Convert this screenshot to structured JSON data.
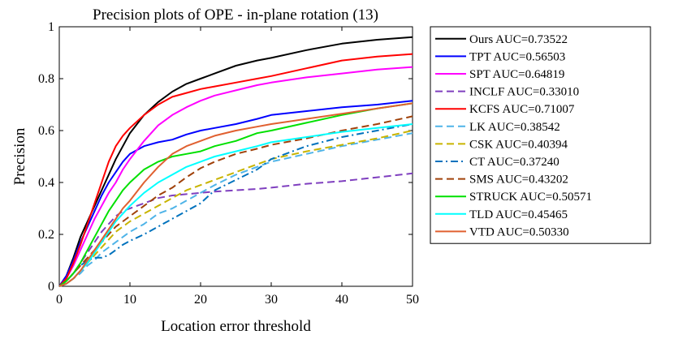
{
  "chart_data": {
    "type": "line",
    "title": "Precision plots of OPE - in-plane rotation (13)",
    "xlabel": "Location error threshold",
    "ylabel": "Precision",
    "xlim": [
      0,
      50
    ],
    "ylim": [
      0,
      1
    ],
    "xticks": [
      0,
      10,
      20,
      30,
      40,
      50
    ],
    "yticks": [
      0,
      0.2,
      0.4,
      0.6,
      0.8,
      1
    ],
    "ytick_labels": [
      "0",
      "0.2",
      "0.4",
      "0.6",
      "0.8",
      "1"
    ],
    "grid": false,
    "legend_position": "outside-right",
    "series": [
      {
        "name": "Ours AUC=0.73522",
        "color": "#000000",
        "dash": "solid",
        "x": [
          0,
          1,
          2,
          3,
          4,
          5,
          6,
          7,
          8,
          9,
          10,
          12,
          14,
          16,
          18,
          20,
          22,
          25,
          28,
          30,
          35,
          40,
          45,
          50
        ],
        "y": [
          0,
          0.04,
          0.11,
          0.19,
          0.25,
          0.31,
          0.37,
          0.43,
          0.49,
          0.54,
          0.59,
          0.66,
          0.71,
          0.75,
          0.78,
          0.8,
          0.82,
          0.85,
          0.87,
          0.88,
          0.91,
          0.935,
          0.95,
          0.96
        ]
      },
      {
        "name": "TPT AUC=0.56503",
        "color": "#0000ff",
        "dash": "solid",
        "x": [
          0,
          1,
          2,
          3,
          4,
          5,
          6,
          7,
          8,
          9,
          10,
          12,
          14,
          16,
          18,
          20,
          22,
          25,
          28,
          30,
          35,
          40,
          45,
          50
        ],
        "y": [
          0,
          0.04,
          0.1,
          0.17,
          0.23,
          0.29,
          0.35,
          0.4,
          0.44,
          0.48,
          0.51,
          0.54,
          0.555,
          0.565,
          0.585,
          0.6,
          0.61,
          0.625,
          0.645,
          0.66,
          0.675,
          0.69,
          0.7,
          0.715
        ]
      },
      {
        "name": "SPT AUC=0.64819",
        "color": "#ff00ff",
        "dash": "solid",
        "x": [
          0,
          1,
          2,
          3,
          4,
          5,
          6,
          7,
          8,
          9,
          10,
          12,
          14,
          16,
          18,
          20,
          22,
          25,
          28,
          30,
          35,
          40,
          45,
          50
        ],
        "y": [
          0,
          0.03,
          0.08,
          0.14,
          0.2,
          0.26,
          0.31,
          0.36,
          0.4,
          0.45,
          0.49,
          0.56,
          0.62,
          0.66,
          0.69,
          0.715,
          0.735,
          0.755,
          0.775,
          0.785,
          0.805,
          0.82,
          0.835,
          0.845
        ]
      },
      {
        "name": "INCLF AUC=0.33010",
        "color": "#7f3fbf",
        "dash": "dash",
        "x": [
          0,
          1,
          2,
          3,
          4,
          5,
          6,
          7,
          8,
          9,
          10,
          12,
          14,
          16,
          18,
          20,
          22,
          25,
          28,
          30,
          35,
          40,
          45,
          50
        ],
        "y": [
          0,
          0.02,
          0.05,
          0.09,
          0.13,
          0.17,
          0.21,
          0.24,
          0.27,
          0.29,
          0.3,
          0.32,
          0.34,
          0.35,
          0.355,
          0.36,
          0.365,
          0.37,
          0.375,
          0.38,
          0.395,
          0.405,
          0.42,
          0.435
        ]
      },
      {
        "name": "KCFS AUC=0.71007",
        "color": "#ff0000",
        "dash": "solid",
        "x": [
          0,
          1,
          2,
          3,
          4,
          5,
          6,
          7,
          8,
          9,
          10,
          12,
          14,
          16,
          18,
          20,
          22,
          25,
          28,
          30,
          35,
          40,
          45,
          50
        ],
        "y": [
          0,
          0.03,
          0.09,
          0.16,
          0.24,
          0.32,
          0.4,
          0.48,
          0.54,
          0.58,
          0.61,
          0.66,
          0.7,
          0.73,
          0.745,
          0.76,
          0.77,
          0.785,
          0.8,
          0.81,
          0.84,
          0.87,
          0.885,
          0.895
        ]
      },
      {
        "name": "LK AUC=0.38542",
        "color": "#4fb4e8",
        "dash": "dash",
        "x": [
          0,
          1,
          2,
          3,
          4,
          5,
          6,
          7,
          8,
          9,
          10,
          12,
          14,
          16,
          18,
          20,
          22,
          25,
          28,
          30,
          35,
          40,
          45,
          50
        ],
        "y": [
          0,
          0.01,
          0.03,
          0.05,
          0.08,
          0.1,
          0.13,
          0.15,
          0.17,
          0.19,
          0.21,
          0.24,
          0.28,
          0.3,
          0.33,
          0.36,
          0.39,
          0.43,
          0.46,
          0.48,
          0.51,
          0.54,
          0.565,
          0.59
        ]
      },
      {
        "name": "CSK AUC=0.40394",
        "color": "#c8b400",
        "dash": "dash",
        "x": [
          0,
          1,
          2,
          3,
          4,
          5,
          6,
          7,
          8,
          9,
          10,
          12,
          14,
          16,
          18,
          20,
          22,
          25,
          28,
          30,
          35,
          40,
          45,
          50
        ],
        "y": [
          0,
          0.01,
          0.03,
          0.06,
          0.09,
          0.12,
          0.15,
          0.18,
          0.21,
          0.23,
          0.25,
          0.28,
          0.31,
          0.34,
          0.37,
          0.39,
          0.41,
          0.44,
          0.47,
          0.49,
          0.52,
          0.545,
          0.57,
          0.6
        ]
      },
      {
        "name": "CT AUC=0.37240",
        "color": "#0072bd",
        "dash": "dashdot",
        "x": [
          0,
          1,
          2,
          3,
          4,
          5,
          6,
          7,
          8,
          9,
          10,
          12,
          14,
          16,
          18,
          20,
          22,
          25,
          28,
          30,
          35,
          40,
          45,
          50
        ],
        "y": [
          0,
          0.02,
          0.05,
          0.08,
          0.1,
          0.11,
          0.11,
          0.12,
          0.14,
          0.16,
          0.175,
          0.2,
          0.23,
          0.26,
          0.29,
          0.32,
          0.37,
          0.41,
          0.45,
          0.49,
          0.54,
          0.575,
          0.6,
          0.625
        ]
      },
      {
        "name": "SMS AUC=0.43202",
        "color": "#a0410a",
        "dash": "dash",
        "x": [
          0,
          1,
          2,
          3,
          4,
          5,
          6,
          7,
          8,
          9,
          10,
          12,
          14,
          16,
          18,
          20,
          22,
          25,
          28,
          30,
          35,
          40,
          45,
          50
        ],
        "y": [
          0,
          0.02,
          0.05,
          0.08,
          0.11,
          0.14,
          0.17,
          0.2,
          0.23,
          0.25,
          0.27,
          0.31,
          0.35,
          0.38,
          0.42,
          0.455,
          0.48,
          0.51,
          0.53,
          0.545,
          0.57,
          0.6,
          0.625,
          0.655
        ]
      },
      {
        "name": "STRUCK AUC=0.50571",
        "color": "#00e000",
        "dash": "solid",
        "x": [
          0,
          1,
          2,
          3,
          4,
          5,
          6,
          7,
          8,
          9,
          10,
          12,
          14,
          16,
          18,
          20,
          22,
          25,
          28,
          30,
          35,
          40,
          45,
          50
        ],
        "y": [
          0,
          0.02,
          0.05,
          0.09,
          0.14,
          0.19,
          0.24,
          0.29,
          0.33,
          0.37,
          0.4,
          0.45,
          0.48,
          0.5,
          0.51,
          0.52,
          0.54,
          0.56,
          0.59,
          0.6,
          0.63,
          0.66,
          0.685,
          0.705
        ]
      },
      {
        "name": "TLD AUC=0.45465",
        "color": "#00ffff",
        "dash": "solid",
        "x": [
          0,
          1,
          2,
          3,
          4,
          5,
          6,
          7,
          8,
          9,
          10,
          12,
          14,
          16,
          18,
          20,
          22,
          25,
          28,
          30,
          35,
          40,
          45,
          50
        ],
        "y": [
          0,
          0.01,
          0.03,
          0.06,
          0.09,
          0.13,
          0.17,
          0.21,
          0.25,
          0.28,
          0.31,
          0.36,
          0.4,
          0.43,
          0.46,
          0.48,
          0.5,
          0.52,
          0.54,
          0.555,
          0.575,
          0.595,
          0.61,
          0.625
        ]
      },
      {
        "name": "VTD AUC=0.50330",
        "color": "#e06030",
        "dash": "solid",
        "x": [
          0,
          1,
          2,
          3,
          4,
          5,
          6,
          7,
          8,
          9,
          10,
          12,
          14,
          16,
          18,
          20,
          22,
          25,
          28,
          30,
          35,
          40,
          45,
          50
        ],
        "y": [
          0,
          0.01,
          0.03,
          0.06,
          0.1,
          0.14,
          0.18,
          0.22,
          0.26,
          0.3,
          0.33,
          0.4,
          0.46,
          0.51,
          0.54,
          0.56,
          0.58,
          0.6,
          0.615,
          0.625,
          0.645,
          0.665,
          0.685,
          0.705
        ]
      }
    ]
  }
}
